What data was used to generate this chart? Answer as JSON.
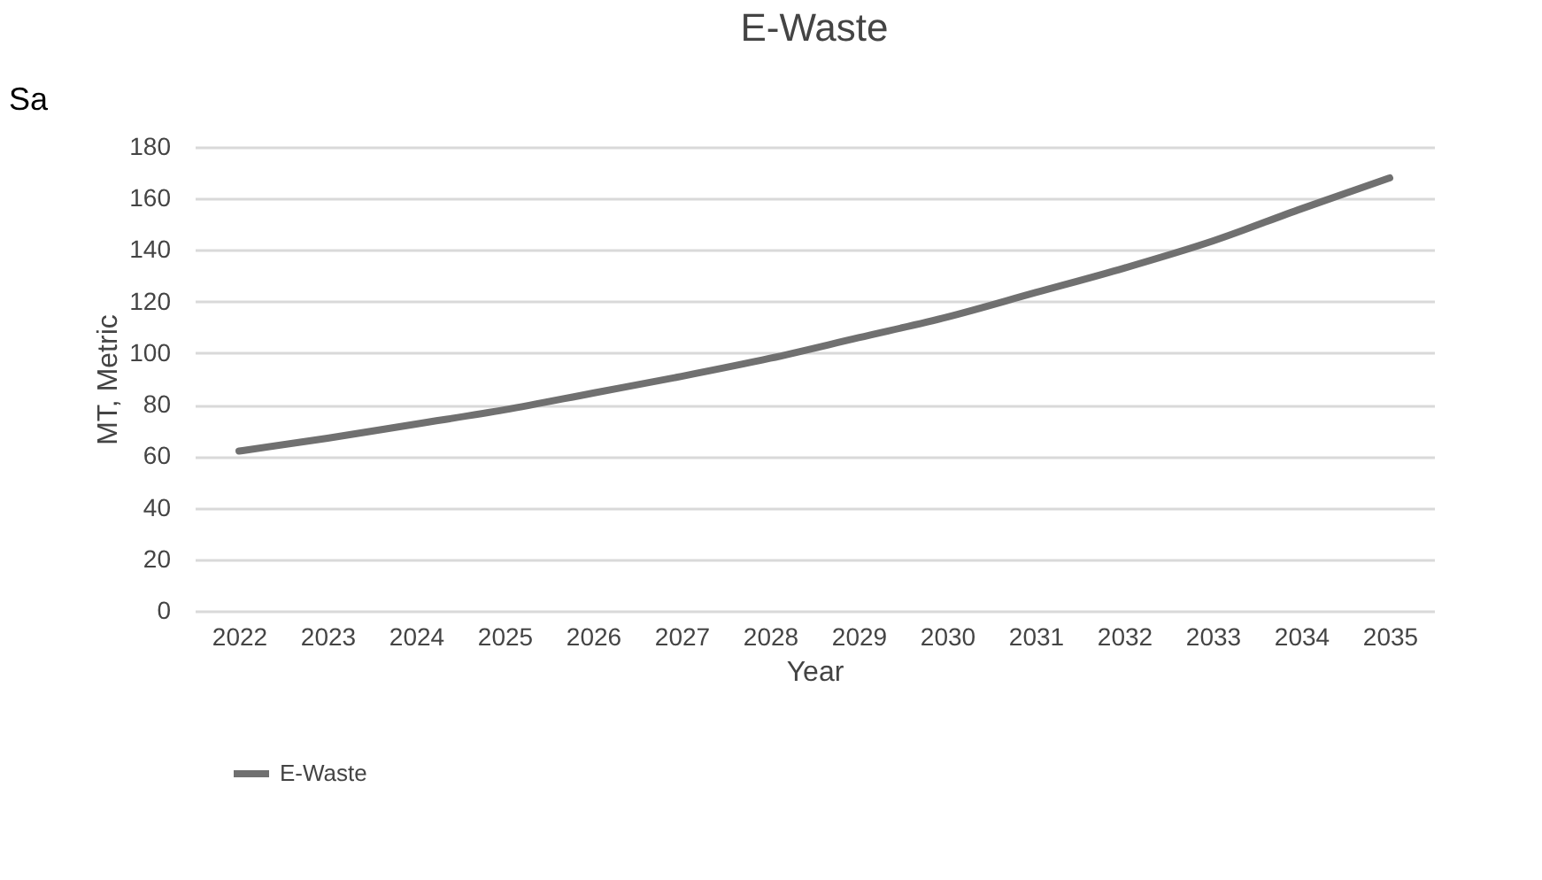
{
  "chart_data": {
    "type": "line",
    "title": "E-Waste",
    "xlabel": "Year",
    "ylabel": "MT, Metric",
    "categories": [
      "2022",
      "2023",
      "2024",
      "2025",
      "2026",
      "2027",
      "2028",
      "2029",
      "2030",
      "2031",
      "2032",
      "2033",
      "2034",
      "2035"
    ],
    "series": [
      {
        "name": "E-Waste",
        "color": "#707070",
        "values": [
          62,
          67,
          72.5,
          78,
          84.5,
          91,
          98,
          106,
          114,
          123.5,
          133,
          143.5,
          156,
          168
        ]
      }
    ],
    "ylim": [
      0,
      180
    ],
    "yticks": [
      0,
      20,
      40,
      60,
      80,
      100,
      120,
      140,
      160,
      180
    ],
    "grid": "y",
    "legend": "bottom",
    "marker": "none",
    "line_style": "solid",
    "annotations": [
      "Sa"
    ]
  }
}
